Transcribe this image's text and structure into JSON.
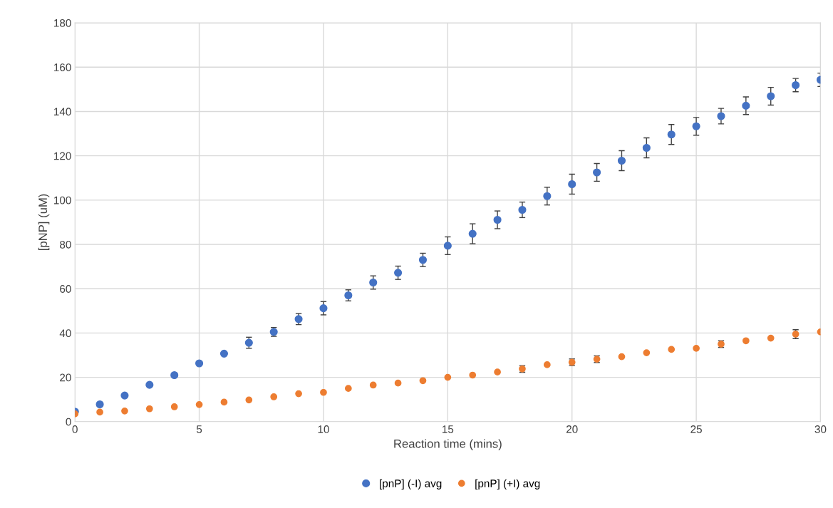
{
  "chart_data": {
    "type": "scatter",
    "xlabel": "Reaction time (mins)",
    "ylabel": "[pNP] (uM)",
    "x": [
      0,
      1,
      2,
      3,
      4,
      5,
      6,
      7,
      8,
      9,
      10,
      11,
      12,
      13,
      14,
      15,
      16,
      17,
      18,
      19,
      20,
      21,
      22,
      23,
      24,
      25,
      26,
      27,
      28,
      29,
      30
    ],
    "series": [
      {
        "name": "[pnP] (-I) avg",
        "color": "#4472c4",
        "values": [
          4.5,
          7.8,
          11.8,
          16.6,
          21,
          26.3,
          30.7,
          35.6,
          40.5,
          46.3,
          51.2,
          57,
          62.8,
          67.2,
          73,
          79.4,
          84.8,
          91.1,
          95.6,
          101.8,
          107.2,
          112.5,
          117.8,
          123.6,
          129.6,
          133.3,
          137.9,
          142.6,
          146.9,
          151.9,
          154.3
        ],
        "errors": [
          null,
          null,
          null,
          null,
          null,
          null,
          null,
          2.5,
          2,
          2.5,
          3,
          2.5,
          3,
          3,
          3,
          4,
          4.5,
          4,
          3.5,
          4,
          4.5,
          4,
          4.5,
          4.5,
          4.5,
          4,
          3.5,
          4,
          4,
          3,
          3
        ]
      },
      {
        "name": "[pnP] (+I) avg",
        "color": "#ed7d31",
        "values": [
          3.5,
          4.3,
          4.8,
          5.8,
          6.7,
          7.7,
          8.8,
          9.8,
          11.2,
          12.6,
          13.2,
          15,
          16.5,
          17.4,
          18.5,
          20,
          21,
          22.4,
          23.8,
          25.7,
          26.8,
          28.2,
          29.3,
          31.1,
          32.6,
          33.1,
          35,
          36.5,
          37.7,
          39.5,
          40.5
        ],
        "errors": [
          null,
          null,
          null,
          null,
          null,
          null,
          null,
          null,
          null,
          null,
          null,
          null,
          null,
          null,
          null,
          null,
          null,
          null,
          1.5,
          null,
          1.5,
          1.5,
          null,
          null,
          null,
          null,
          1.5,
          null,
          null,
          2,
          null
        ]
      }
    ],
    "xlim": [
      0,
      30
    ],
    "ylim": [
      0,
      180
    ],
    "xticks": [
      0,
      5,
      10,
      15,
      20,
      25,
      30
    ],
    "yticks": [
      0,
      20,
      40,
      60,
      80,
      100,
      120,
      140,
      160,
      180
    ],
    "grid": true,
    "legend": "bottom",
    "marker": "circle"
  }
}
